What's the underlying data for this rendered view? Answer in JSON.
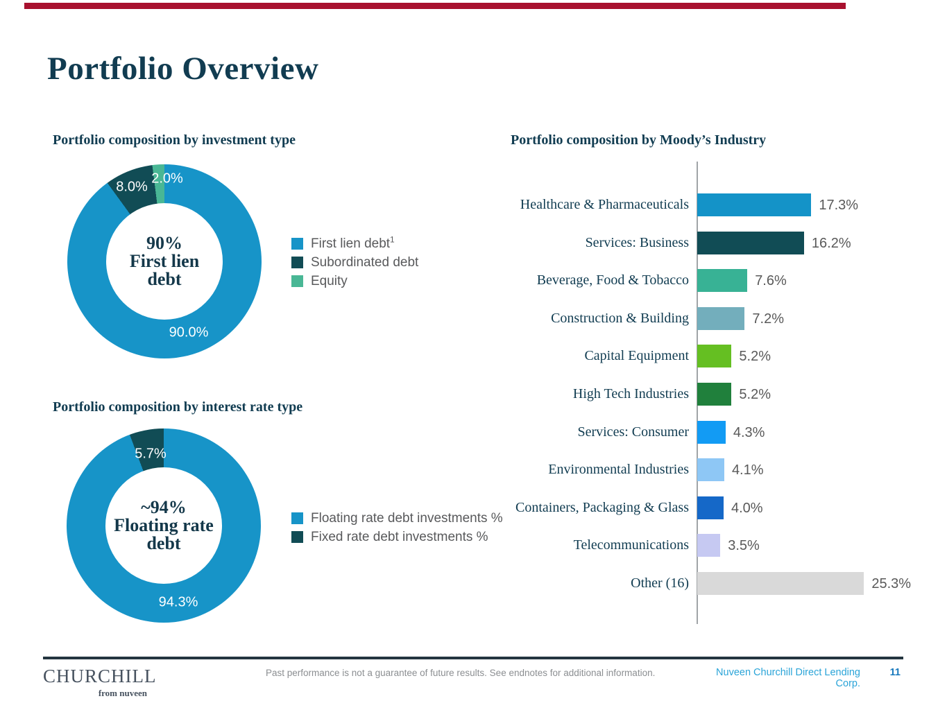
{
  "page": {
    "title": "Portfolio Overview",
    "accent_color": "#a8112e",
    "brand_navy": "#113c51"
  },
  "headings": {
    "investment_type": "Portfolio composition by investment type",
    "interest_rate": "Portfolio composition by interest rate type",
    "industry": "Portfolio composition by Moody’s Industry"
  },
  "chart_data": [
    {
      "type": "pie",
      "subtype": "donut",
      "title": "Portfolio composition by investment type",
      "slices": [
        {
          "label": "First lien debt",
          "value": 90.0,
          "color": "#1794c8",
          "data_label": "90.0%"
        },
        {
          "label": "Subordinated debt",
          "value": 8.0,
          "color": "#114c55",
          "data_label": "8.0%"
        },
        {
          "label": "Equity",
          "value": 2.0,
          "color": "#49b795",
          "data_label": "2.0%"
        }
      ],
      "center_lines": [
        "90%",
        "First lien",
        "debt"
      ],
      "legend": [
        {
          "label": "First lien debt",
          "superscript": "1",
          "color": "#1794c8"
        },
        {
          "label": "Subordinated debt",
          "superscript": "",
          "color": "#114c55"
        },
        {
          "label": "Equity",
          "superscript": "",
          "color": "#49b795"
        }
      ],
      "legend_position": "right"
    },
    {
      "type": "pie",
      "subtype": "donut",
      "title": "Portfolio composition by interest rate type",
      "slices": [
        {
          "label": "Floating rate debt investments %",
          "value": 94.3,
          "color": "#1794c8",
          "data_label": "94.3%"
        },
        {
          "label": "Fixed rate debt investments %",
          "value": 5.7,
          "color": "#114c55",
          "data_label": "5.7%"
        }
      ],
      "center_lines": [
        "~94%",
        "Floating rate",
        "debt"
      ],
      "legend": [
        {
          "label": "Floating rate debt investments %",
          "superscript": "",
          "color": "#1794c8"
        },
        {
          "label": "Fixed rate debt investments %",
          "superscript": "",
          "color": "#114c55"
        }
      ],
      "legend_position": "right"
    },
    {
      "type": "bar",
      "orientation": "horizontal",
      "title": "Portfolio composition by Moody’s Industry",
      "categories": [
        "Healthcare & Pharmaceuticals",
        "Services: Business",
        "Beverage, Food & Tobacco",
        "Construction & Building",
        "Capital Equipment",
        "High Tech Industries",
        "Services: Consumer",
        "Environmental Industries",
        "Containers, Packaging & Glass",
        "Telecommunications",
        "Other (16)"
      ],
      "values": [
        17.3,
        16.2,
        7.6,
        7.2,
        5.2,
        5.2,
        4.3,
        4.1,
        4.0,
        3.5,
        25.3
      ],
      "value_labels": [
        "17.3%",
        "16.2%",
        "7.6%",
        "7.2%",
        "5.2%",
        "5.2%",
        "4.3%",
        "4.1%",
        "4.0%",
        "3.5%",
        "25.3%"
      ],
      "bar_colors": [
        "#1493c8",
        "#114c55",
        "#38b295",
        "#73aebc",
        "#65bf22",
        "#20803c",
        "#129bf4",
        "#8ec7f5",
        "#1568c8",
        "#c6c9f2",
        "#d9d9d9"
      ],
      "xlim": [
        0,
        26.5
      ],
      "grid": false,
      "value_label_color": "#595959",
      "category_label_color": "#113c51"
    }
  ],
  "footer": {
    "logo_primary": "CHURCHILL",
    "logo_secondary": "from nuveen",
    "disclaimer": "Past performance is not a guarantee of future results. See endnotes for additional information.",
    "company": "Nuveen Churchill Direct Lending Corp.",
    "page_number": "11",
    "company_color": "#2aa4d8",
    "page_number_color": "#1879bd"
  }
}
